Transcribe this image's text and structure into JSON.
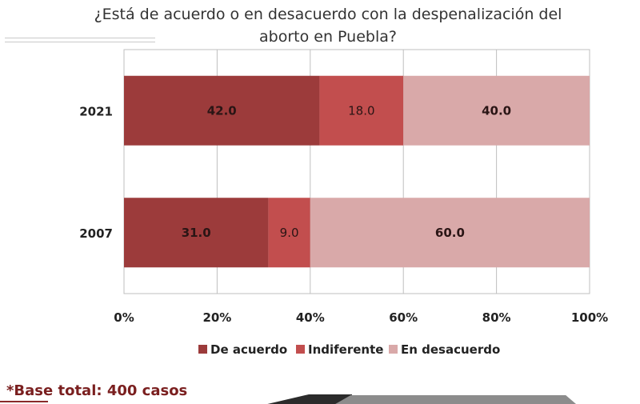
{
  "chart_data": {
    "type": "bar",
    "orientation": "horizontal",
    "stacked": true,
    "percent": true,
    "title": "¿Está de acuerdo o en desacuerdo con la despenalización del aborto en Puebla?",
    "title_lines": [
      "¿Está de acuerdo o en desacuerdo con la despenalización del",
      "aborto en Puebla?"
    ],
    "categories": [
      "2021",
      "2007"
    ],
    "series": [
      {
        "name": "De acuerdo",
        "values": [
          42.0,
          31.0
        ],
        "color": "#9c3b3b",
        "labels": [
          "42.0",
          "31.0"
        ],
        "label_bold": true
      },
      {
        "name": "Indiferente",
        "values": [
          18.0,
          9.0
        ],
        "color": "#c24e4e",
        "labels": [
          "18.0",
          "9.0"
        ],
        "label_bold": false
      },
      {
        "name": "En desacuerdo",
        "values": [
          40.0,
          60.0
        ],
        "color": "#d9a9a9",
        "labels": [
          "40.0",
          "60.0"
        ],
        "label_bold": true
      }
    ],
    "x_ticks": [
      "0%",
      "20%",
      "40%",
      "60%",
      "80%",
      "100%"
    ],
    "xlim": [
      0,
      100
    ],
    "grid": "vertical",
    "legend_position": "bottom"
  },
  "footnote": "*Base total: 400 casos"
}
